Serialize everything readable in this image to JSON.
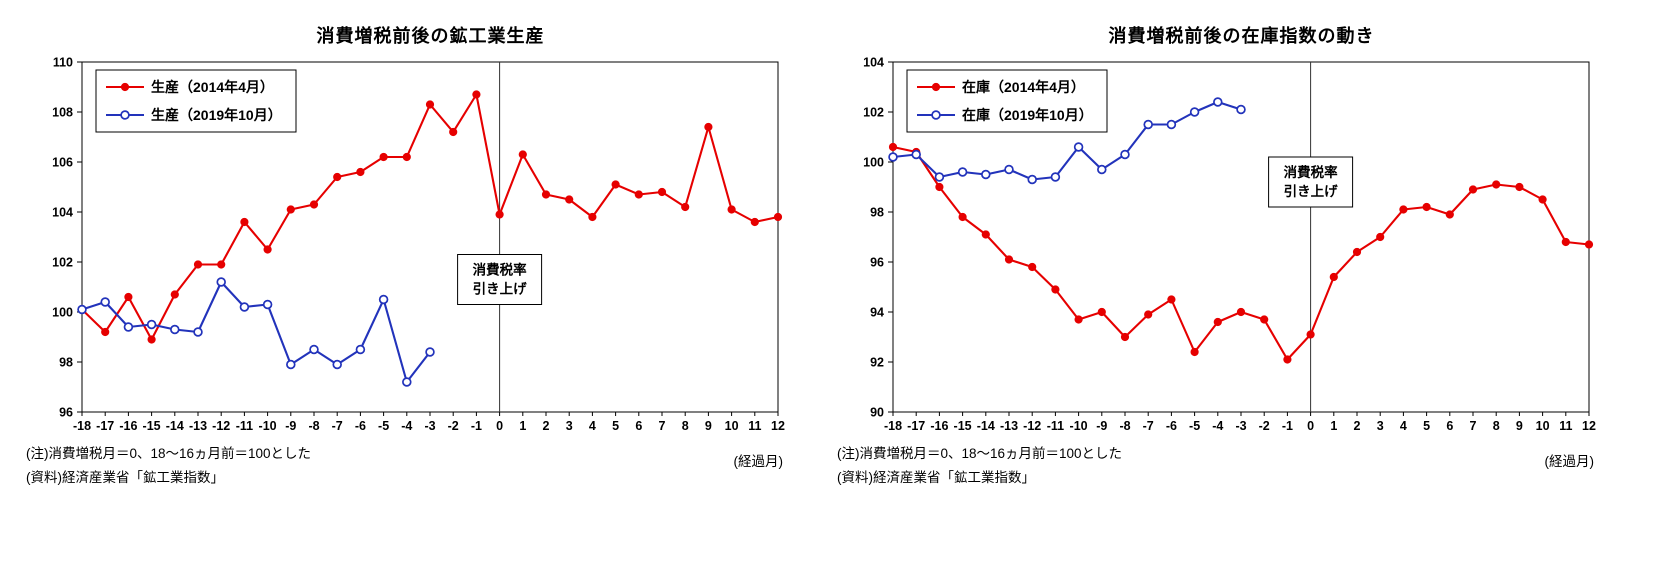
{
  "chart_data": [
    {
      "type": "line",
      "title": "消費増税前後の鉱工業生産",
      "categories": [
        -18,
        -17,
        -16,
        -15,
        -14,
        -13,
        -12,
        -11,
        -10,
        -9,
        -8,
        -7,
        -6,
        -5,
        -4,
        -3,
        -2,
        -1,
        0,
        1,
        2,
        3,
        4,
        5,
        6,
        7,
        8,
        9,
        10,
        11,
        12
      ],
      "series": [
        {
          "name": "生産（2014年4月）",
          "color": "#e60000",
          "marker": "filled-circle",
          "values": [
            100.1,
            99.2,
            100.6,
            98.9,
            100.7,
            101.9,
            101.9,
            103.6,
            102.5,
            104.1,
            104.3,
            105.4,
            105.6,
            106.2,
            106.2,
            108.3,
            107.2,
            108.7,
            103.9,
            106.3,
            104.7,
            104.5,
            103.8,
            105.1,
            104.7,
            104.8,
            104.2,
            107.4,
            104.1,
            103.6,
            103.8
          ]
        },
        {
          "name": "生産（2019年10月）",
          "color": "#2233bb",
          "marker": "open-circle",
          "values": [
            100.1,
            100.4,
            99.4,
            99.5,
            99.3,
            99.2,
            101.2,
            100.2,
            100.3,
            97.9,
            98.5,
            97.9,
            98.5,
            100.5,
            97.2,
            98.4,
            null,
            null,
            null,
            null,
            null,
            null,
            null,
            null,
            null,
            null,
            null,
            null,
            null,
            null,
            null
          ]
        }
      ],
      "ylim": [
        96,
        110
      ],
      "ytick_step": 2,
      "grid": false,
      "legend_position": "top-left",
      "vline_x": 0,
      "annotation": {
        "lines": [
          "消費税率",
          "引き上げ"
        ],
        "y_center": 101.3
      },
      "xlabel": "(経過月)",
      "notes": [
        "(注)消費増税月＝0、18～16ヵ月前＝100とした",
        "(資料)経済産業省「鉱工業指数」"
      ]
    },
    {
      "type": "line",
      "title": "消費増税前後の在庫指数の動き",
      "categories": [
        -18,
        -17,
        -16,
        -15,
        -14,
        -13,
        -12,
        -11,
        -10,
        -9,
        -8,
        -7,
        -6,
        -5,
        -4,
        -3,
        -2,
        -1,
        0,
        1,
        2,
        3,
        4,
        5,
        6,
        7,
        8,
        9,
        10,
        11,
        12
      ],
      "series": [
        {
          "name": "在庫（2014年4月）",
          "color": "#e60000",
          "marker": "filled-circle",
          "values": [
            100.6,
            100.4,
            99.0,
            97.8,
            97.1,
            96.1,
            95.8,
            94.9,
            93.7,
            94.0,
            93.0,
            93.9,
            94.5,
            92.4,
            93.6,
            94.0,
            93.7,
            92.1,
            93.1,
            95.4,
            96.4,
            97.0,
            98.1,
            98.2,
            97.9,
            98.9,
            99.1,
            99.0,
            98.5,
            96.8,
            96.7
          ]
        },
        {
          "name": "在庫（2019年10月）",
          "color": "#2233bb",
          "marker": "open-circle",
          "values": [
            100.2,
            100.3,
            99.4,
            99.6,
            99.5,
            99.7,
            99.3,
            99.4,
            100.6,
            99.7,
            100.3,
            101.5,
            101.5,
            102.0,
            102.4,
            102.1,
            null,
            null,
            null,
            null,
            null,
            null,
            null,
            null,
            null,
            null,
            null,
            null,
            null,
            null,
            null
          ]
        }
      ],
      "ylim": [
        90,
        104
      ],
      "ytick_step": 2,
      "grid": false,
      "legend_position": "top-left",
      "vline_x": 0,
      "annotation": {
        "lines": [
          "消費税率",
          "引き上げ"
        ],
        "y_center": 99.2
      },
      "xlabel": "(経過月)",
      "notes": [
        "(注)消費増税月＝0、18～16ヵ月前＝100とした",
        "(資料)経済産業省「鉱工業指数」"
      ]
    }
  ]
}
